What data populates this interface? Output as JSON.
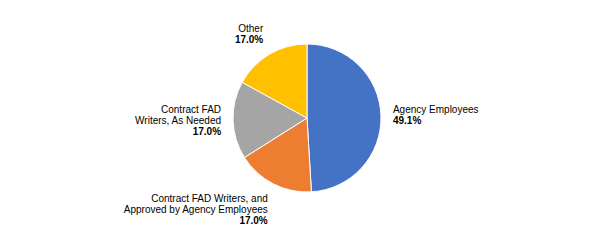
{
  "chart_data": {
    "type": "pie",
    "categories": [
      "Agency Employees",
      "Contract FAD Writers, and\nApproved by Agency Employees",
      "Contract FAD\nWriters, As Needed",
      "Other"
    ],
    "values": [
      49.1,
      17.0,
      17.0,
      17.0
    ],
    "value_labels": [
      "49.1%",
      "17.0%",
      "17.0%",
      "17.0%"
    ],
    "colors": [
      "#4472C4",
      "#ED7D31",
      "#A5A5A5",
      "#FFC000"
    ],
    "data_labels": true
  }
}
